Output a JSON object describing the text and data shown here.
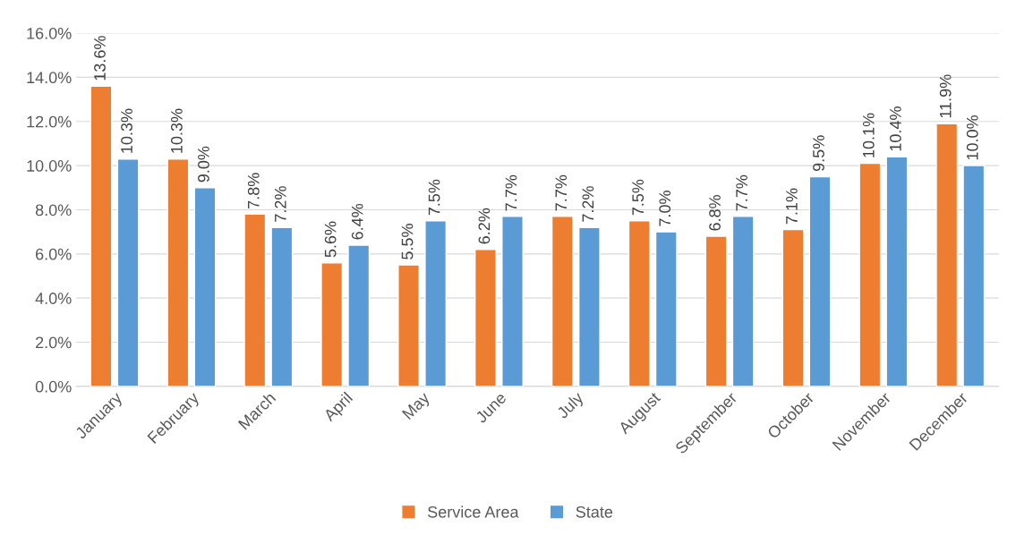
{
  "chart_data": {
    "type": "bar",
    "categories": [
      "January",
      "February",
      "March",
      "April",
      "May",
      "June",
      "July",
      "August",
      "September",
      "October",
      "November",
      "December"
    ],
    "series": [
      {
        "name": "Service Area",
        "color": "#ed7d31",
        "values": [
          13.6,
          10.3,
          7.8,
          5.6,
          5.5,
          6.2,
          7.7,
          7.5,
          6.8,
          7.1,
          10.1,
          11.9
        ],
        "value_labels": [
          "13.6%",
          "10.3%",
          "7.8%",
          "5.6%",
          "5.5%",
          "6.2%",
          "7.7%",
          "7.5%",
          "6.8%",
          "7.1%",
          "10.1%",
          "11.9%"
        ]
      },
      {
        "name": "State",
        "color": "#5b9bd5",
        "values": [
          10.3,
          9.0,
          7.2,
          6.4,
          7.5,
          7.7,
          7.2,
          7.0,
          7.7,
          9.5,
          10.4,
          10.0
        ],
        "value_labels": [
          "10.3%",
          "9.0%",
          "7.2%",
          "6.4%",
          "7.5%",
          "7.7%",
          "7.2%",
          "7.0%",
          "7.7%",
          "9.5%",
          "10.4%",
          "10.0%"
        ]
      }
    ],
    "ylim": [
      0,
      16
    ],
    "yticks": [
      {
        "value": 0,
        "label": "0.0%"
      },
      {
        "value": 2,
        "label": "2.0%"
      },
      {
        "value": 4,
        "label": "4.0%"
      },
      {
        "value": 6,
        "label": "6.0%"
      },
      {
        "value": 8,
        "label": "8.0%"
      },
      {
        "value": 10,
        "label": "10.0%"
      },
      {
        "value": 12,
        "label": "12.0%"
      },
      {
        "value": 14,
        "label": "14.0%"
      },
      {
        "value": 16,
        "label": "16.0%"
      }
    ],
    "grid": "y",
    "legend": "bottom"
  }
}
